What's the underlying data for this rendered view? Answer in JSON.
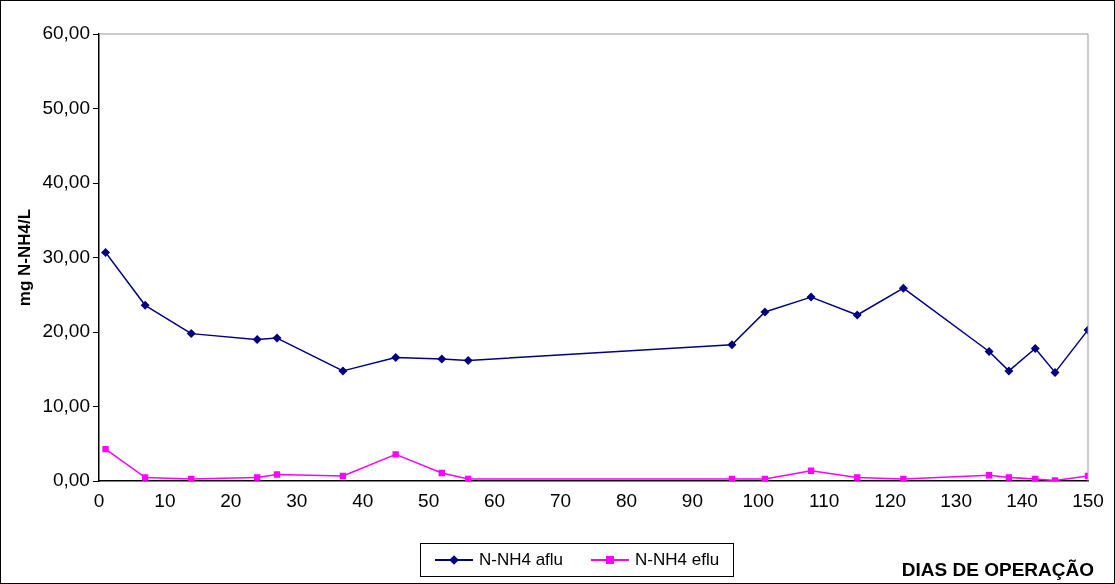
{
  "chart_data": {
    "type": "line",
    "xlabel": "DIAS DE OPERAÇÃO",
    "ylabel": "mg N-NH4/L",
    "xlim": [
      0,
      150
    ],
    "xticks": [
      0,
      10,
      20,
      30,
      40,
      50,
      60,
      70,
      80,
      90,
      100,
      110,
      120,
      130,
      140,
      150
    ],
    "ylim": [
      0,
      60
    ],
    "yticks": [
      {
        "value": 0,
        "label": "0,00"
      },
      {
        "value": 10,
        "label": "10,00"
      },
      {
        "value": 20,
        "label": "20,00"
      },
      {
        "value": 30,
        "label": "30,00"
      },
      {
        "value": 40,
        "label": "40,00"
      },
      {
        "value": 50,
        "label": "50,00"
      },
      {
        "value": 60,
        "label": "60,00"
      }
    ],
    "x": [
      1,
      7,
      14,
      24,
      27,
      37,
      45,
      52,
      56,
      96,
      101,
      108,
      115,
      122,
      135,
      138,
      142,
      145,
      150
    ],
    "series": [
      {
        "name": "N-NH4 aflu",
        "color": "#000080",
        "marker": "diamond",
        "values": [
          30.7,
          23.6,
          19.8,
          19.0,
          19.2,
          14.8,
          16.6,
          16.4,
          16.2,
          18.3,
          22.7,
          24.7,
          22.3,
          25.9,
          17.4,
          14.8,
          17.8,
          14.6,
          20.3
        ]
      },
      {
        "name": "N-NH4 eflu",
        "color": "#ff00ff",
        "marker": "square",
        "values": [
          4.3,
          0.5,
          0.3,
          0.5,
          0.9,
          0.7,
          3.6,
          1.1,
          0.3,
          0.3,
          0.3,
          1.4,
          0.5,
          0.3,
          0.8,
          0.5,
          0.3,
          0.1,
          0.7
        ]
      }
    ],
    "grid": false,
    "legend": "bottom",
    "line_style": "solid"
  }
}
